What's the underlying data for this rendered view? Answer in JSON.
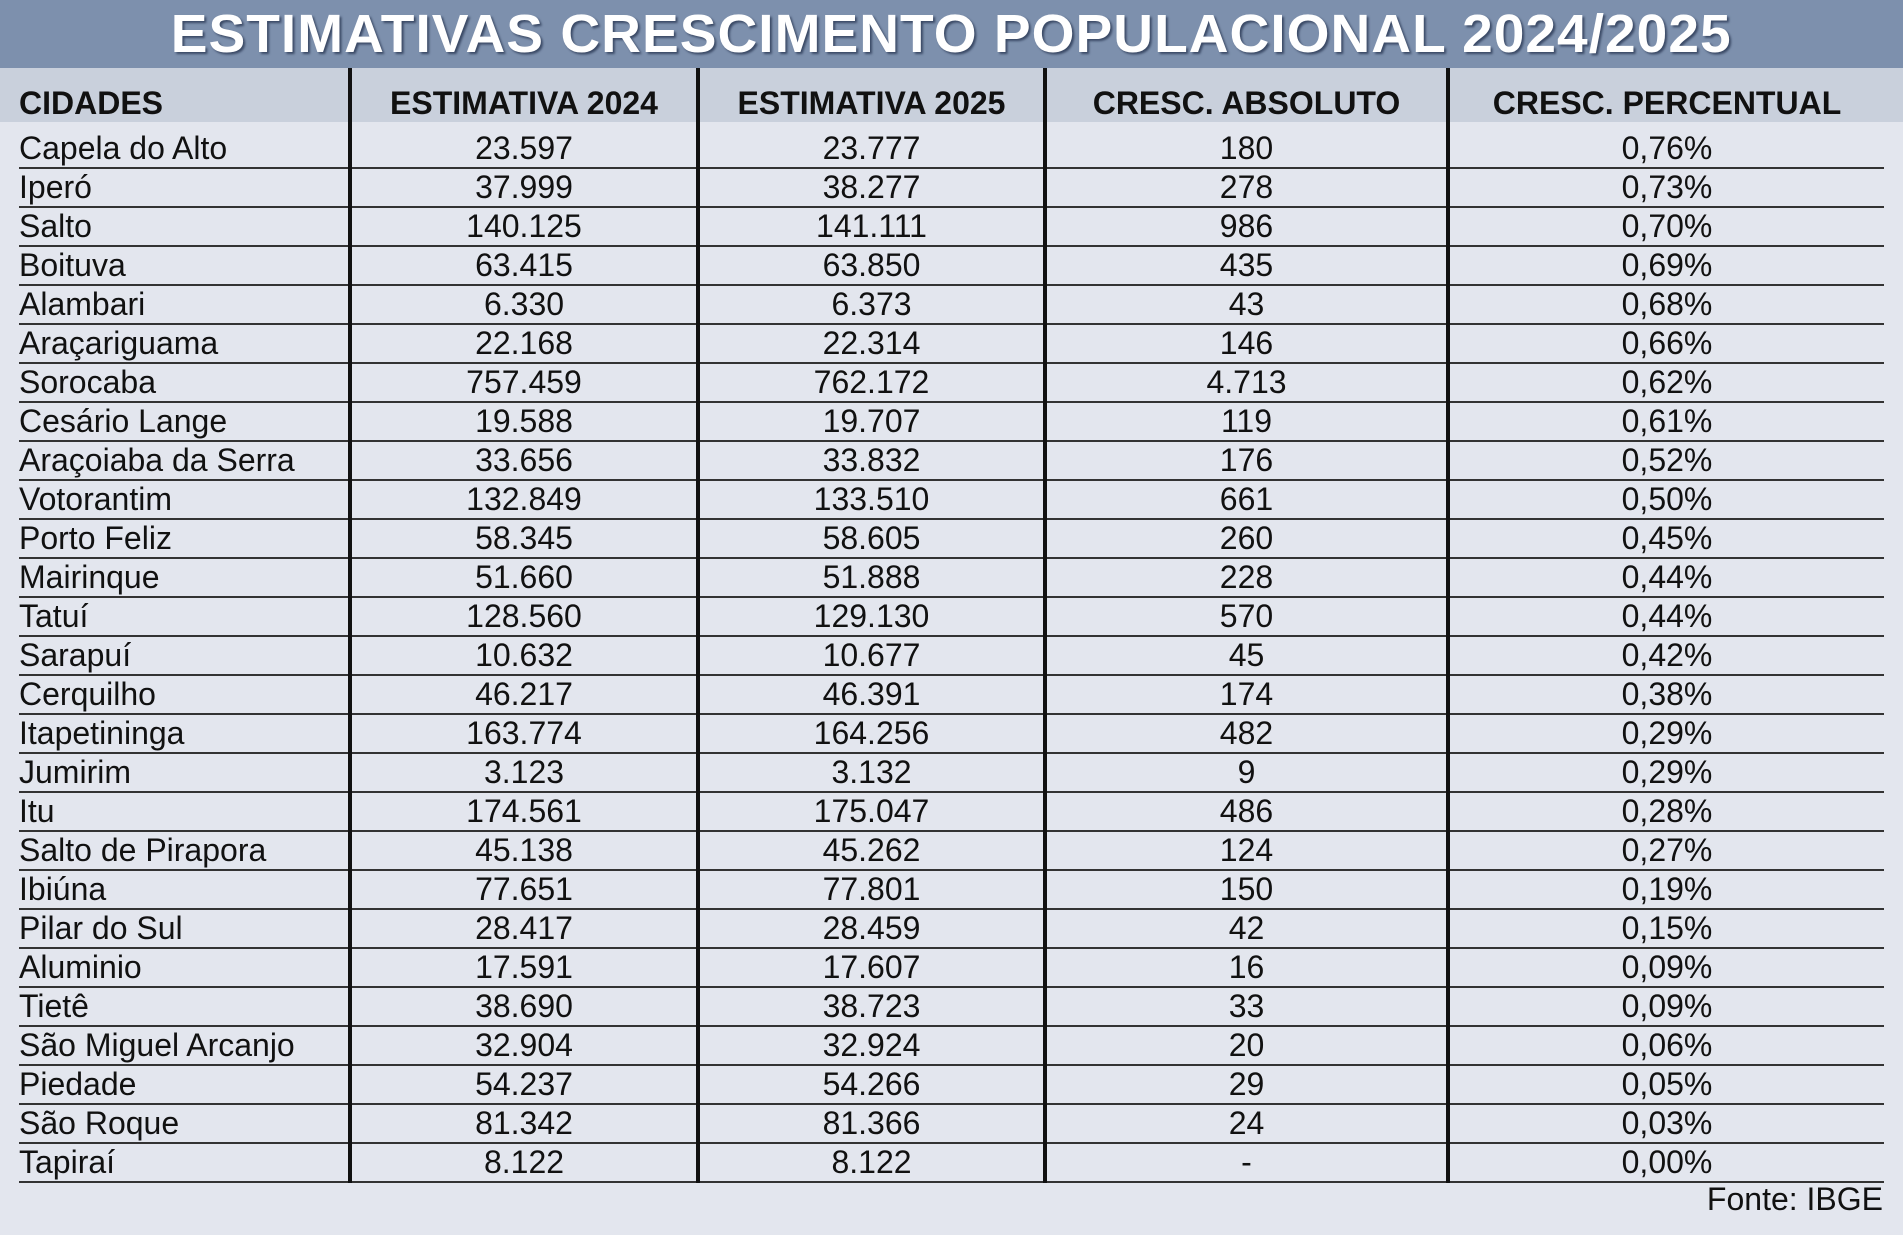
{
  "title": "ESTIMATIVAS CRESCIMENTO POPULACIONAL 2024/2025",
  "columns": [
    "CIDADES",
    "ESTIMATIVA 2024",
    "ESTIMATIVA 2025",
    "CRESC. ABSOLUTO",
    "CRESC. PERCENTUAL"
  ],
  "rows": [
    [
      "Capela do Alto",
      "23.597",
      "23.777",
      "180",
      "0,76%"
    ],
    [
      "Iperó",
      "37.999",
      "38.277",
      "278",
      "0,73%"
    ],
    [
      "Salto",
      "140.125",
      "141.111",
      "986",
      "0,70%"
    ],
    [
      "Boituva",
      "63.415",
      "63.850",
      "435",
      "0,69%"
    ],
    [
      "Alambari",
      "6.330",
      "6.373",
      "43",
      "0,68%"
    ],
    [
      "Araçariguama",
      "22.168",
      "22.314",
      "146",
      "0,66%"
    ],
    [
      "Sorocaba",
      "757.459",
      "762.172",
      "4.713",
      "0,62%"
    ],
    [
      "Cesário Lange",
      "19.588",
      "19.707",
      "119",
      "0,61%"
    ],
    [
      "Araçoiaba da Serra",
      "33.656",
      "33.832",
      "176",
      "0,52%"
    ],
    [
      "Votorantim",
      "132.849",
      "133.510",
      "661",
      "0,50%"
    ],
    [
      "Porto Feliz",
      "58.345",
      "58.605",
      "260",
      "0,45%"
    ],
    [
      "Mairinque",
      "51.660",
      "51.888",
      "228",
      "0,44%"
    ],
    [
      "Tatuí",
      "128.560",
      "129.130",
      "570",
      "0,44%"
    ],
    [
      "Sarapuí",
      "10.632",
      "10.677",
      "45",
      "0,42%"
    ],
    [
      "Cerquilho",
      "46.217",
      "46.391",
      "174",
      "0,38%"
    ],
    [
      "Itapetininga",
      "163.774",
      "164.256",
      "482",
      "0,29%"
    ],
    [
      "Jumirim",
      "3.123",
      "3.132",
      "9",
      "0,29%"
    ],
    [
      "Itu",
      "174.561",
      "175.047",
      "486",
      "0,28%"
    ],
    [
      "Salto de Pirapora",
      "45.138",
      "45.262",
      "124",
      "0,27%"
    ],
    [
      "Ibiúna",
      "77.651",
      "77.801",
      "150",
      "0,19%"
    ],
    [
      "Pilar do Sul",
      "28.417",
      "28.459",
      "42",
      "0,15%"
    ],
    [
      "Aluminio",
      "17.591",
      "17.607",
      "16",
      "0,09%"
    ],
    [
      "Tietê",
      "38.690",
      "38.723",
      "33",
      "0,09%"
    ],
    [
      "São Miguel Arcanjo",
      "32.904",
      "32.924",
      "20",
      "0,06%"
    ],
    [
      "Piedade",
      "54.237",
      "54.266",
      "29",
      "0,05%"
    ],
    [
      "São Roque",
      "81.342",
      "81.366",
      "24",
      "0,03%"
    ],
    [
      "Tapiraí",
      "8.122",
      "8.122",
      "-",
      "0,00%"
    ]
  ],
  "source": "Fonte: IBGE",
  "colors": {
    "title_band": "#7d90ad",
    "header_row": "#c9d0dc",
    "background": "#e3e6ee"
  }
}
